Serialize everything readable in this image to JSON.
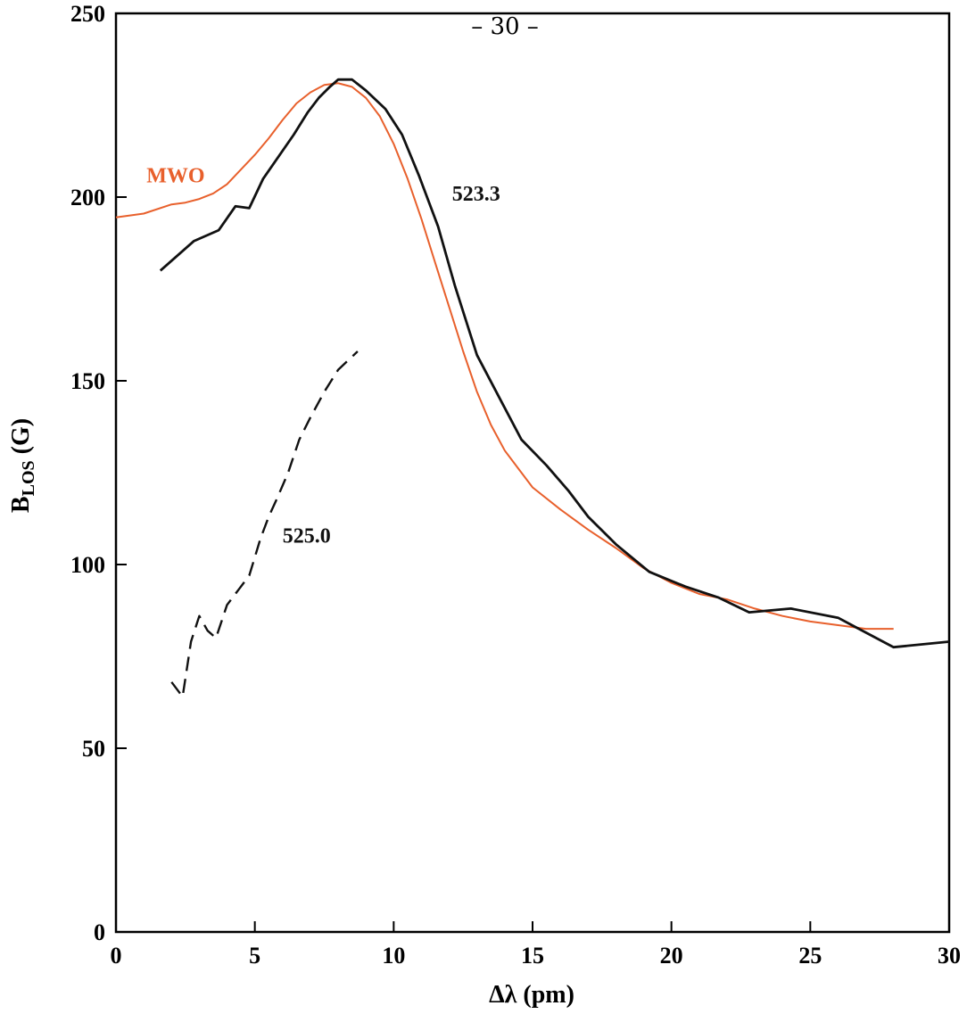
{
  "page_number": "– 30 –",
  "chart_data": {
    "type": "line",
    "title": "",
    "xlabel": "Δλ (pm)",
    "ylabel_main": "B",
    "ylabel_sub": "LOS",
    "ylabel_rest": " (G)",
    "xlim": [
      0,
      30
    ],
    "ylim": [
      0,
      250
    ],
    "xticks": [
      0,
      5,
      10,
      15,
      20,
      25,
      30
    ],
    "yticks": [
      0,
      50,
      100,
      150,
      200,
      250
    ],
    "grid": false,
    "legend": "none",
    "series": [
      {
        "name": "MWO",
        "color": "#e8602c",
        "dash": "solid",
        "x": [
          0,
          1,
          2,
          2.5,
          3,
          3.5,
          4,
          4.5,
          5,
          5.5,
          6,
          6.5,
          7,
          7.5,
          8,
          8.5,
          9,
          9.5,
          10,
          10.5,
          11,
          11.5,
          12,
          12.5,
          13,
          13.5,
          14,
          14.5,
          15,
          16,
          17,
          18,
          19,
          20,
          21,
          22,
          23,
          24,
          25,
          26,
          27,
          28
        ],
        "y": [
          194.5,
          195.5,
          198,
          198.5,
          199.5,
          201,
          203.5,
          207.5,
          211.5,
          216,
          221,
          225.5,
          228.5,
          230.5,
          231,
          230,
          227,
          222,
          214.5,
          205,
          194,
          182,
          170,
          158,
          147,
          138,
          131,
          126,
          121,
          115,
          109.5,
          104.5,
          99,
          95,
          92,
          90.5,
          88,
          86,
          84.5,
          83.5,
          82.5,
          82.5
        ]
      },
      {
        "name": "523.3",
        "color": "#111111",
        "dash": "solid",
        "x": [
          1.6,
          2.8,
          3.7,
          4.3,
          4.8,
          5.3,
          6.4,
          6.9,
          7.3,
          7.7,
          8.0,
          8.5,
          9.0,
          9.7,
          10.3,
          10.9,
          11.6,
          12.2,
          13.0,
          13.9,
          14.6,
          15.5,
          16.3,
          17.0,
          18.0,
          19.2,
          20.5,
          21.7,
          22.8,
          24.3,
          26.0,
          26.5,
          28.0,
          30.0
        ],
        "y": [
          180,
          188,
          191,
          197.5,
          197,
          205,
          217,
          223,
          227,
          230,
          232,
          232,
          229,
          224,
          217,
          206,
          192,
          176,
          157,
          144,
          134,
          127,
          120,
          113,
          105.5,
          98,
          94,
          91,
          87,
          88,
          85.5,
          83.5,
          77.5,
          79
        ]
      },
      {
        "name": "525.0",
        "color": "#111111",
        "dash": "dashed",
        "x": [
          2.0,
          2.4,
          2.7,
          3.0,
          3.3,
          3.6,
          4.0,
          4.4,
          4.8,
          5.2,
          5.5,
          5.8,
          6.2,
          6.6,
          7.0,
          7.5,
          8.0,
          8.7
        ],
        "y": [
          68,
          64,
          79,
          86,
          82,
          80,
          89,
          93,
          97,
          107,
          113,
          118,
          125,
          134,
          140,
          147,
          153,
          158
        ]
      }
    ],
    "annotations": [
      {
        "text": "MWO",
        "x": 1.1,
        "y": 204,
        "color": "#e8602c"
      },
      {
        "text": "523.3",
        "x": 12.1,
        "y": 199,
        "color": "#111111"
      },
      {
        "text": "525.0",
        "x": 6.0,
        "y": 106,
        "color": "#111111"
      }
    ]
  }
}
